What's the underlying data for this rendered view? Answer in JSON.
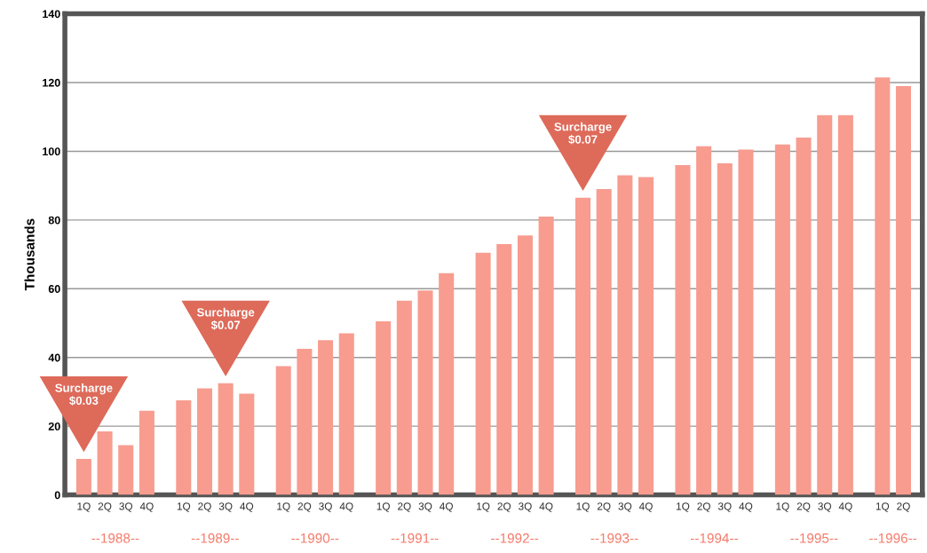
{
  "chart_data": {
    "type": "bar",
    "ylabel": "Thousands",
    "categories": [
      "1Q",
      "2Q",
      "3Q",
      "4Q",
      "1Q",
      "2Q",
      "3Q",
      "4Q",
      "1Q",
      "2Q",
      "3Q",
      "4Q",
      "1Q",
      "2Q",
      "3Q",
      "4Q",
      "1Q",
      "2Q",
      "3Q",
      "4Q",
      "1Q",
      "2Q",
      "3Q",
      "4Q",
      "1Q",
      "2Q",
      "3Q",
      "4Q",
      "1Q",
      "2Q",
      "3Q",
      "4Q",
      "1Q",
      "2Q"
    ],
    "values": [
      10.5,
      18.5,
      14.5,
      24.5,
      27.5,
      31,
      32.5,
      29.5,
      37.5,
      42.5,
      45,
      47,
      50.5,
      56.5,
      59.5,
      64.5,
      70.5,
      73,
      75.5,
      81,
      86.5,
      89,
      93,
      92.5,
      96,
      101.5,
      96.5,
      100.5,
      102,
      104,
      110.5,
      110.5,
      121.5,
      119
    ],
    "color": "#f79c8f",
    "ylim": [
      0,
      140
    ],
    "yticks": [
      0,
      20,
      40,
      60,
      80,
      100,
      120,
      140
    ],
    "grid": "y",
    "legend": false,
    "annotations": [
      "Surcharge\n$0.03",
      "Surcharge\n$0.07",
      "Surcharge\n$0.07",
      "--1988--",
      "--1989--",
      "--1990--",
      "--1991--",
      "--1992--",
      "--1993--",
      "--1994--",
      "--1995--",
      "--1996--"
    ]
  }
}
